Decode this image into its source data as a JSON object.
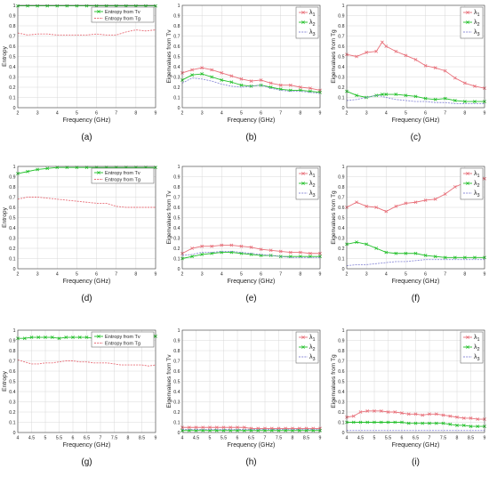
{
  "colors": {
    "red": "#e8707a",
    "green": "#22c02a",
    "blue": "#8c8cd8",
    "axis": "#404040",
    "grid": "#d8d8d8"
  },
  "chart_data": [
    {
      "id": "a",
      "panel_label": "(a)",
      "type": "line",
      "xlabel": "Frequency (GHz)",
      "ylabel": "Entropy",
      "xlim": [
        2,
        9
      ],
      "ylim": [
        0,
        1
      ],
      "xticks": [
        "2",
        "3",
        "4",
        "5",
        "6",
        "7",
        "8",
        "9"
      ],
      "yticks": [
        "0",
        "0.1",
        "0.2",
        "0.3",
        "0.4",
        "0.5",
        "0.6",
        "0.7",
        "0.8",
        "0.9",
        "1"
      ],
      "legend": "top-right",
      "x": [
        2,
        2.5,
        3,
        3.5,
        4,
        4.5,
        5,
        5.5,
        6,
        6.5,
        7,
        7.5,
        8,
        8.5,
        9
      ],
      "series": [
        {
          "name": "Entropy from Tv",
          "color": "green",
          "marker": "x",
          "values": [
            0.995,
            0.995,
            0.995,
            0.995,
            0.995,
            0.995,
            0.995,
            0.995,
            0.995,
            0.995,
            0.995,
            0.995,
            0.995,
            0.995,
            0.995
          ]
        },
        {
          "name": "Entropy from Tg",
          "color": "red",
          "marker": "",
          "values": [
            0.73,
            0.71,
            0.72,
            0.72,
            0.71,
            0.71,
            0.71,
            0.71,
            0.72,
            0.71,
            0.71,
            0.74,
            0.76,
            0.75,
            0.76
          ]
        }
      ]
    },
    {
      "id": "b",
      "panel_label": "(b)",
      "type": "line",
      "xlabel": "Frequency (GHz)",
      "ylabel": "Eigenvalues from Tv",
      "xlim": [
        2,
        9
      ],
      "ylim": [
        0,
        1
      ],
      "xticks": [
        "2",
        "3",
        "4",
        "5",
        "6",
        "7",
        "8",
        "9"
      ],
      "yticks": [
        "0",
        "0.1",
        "0.2",
        "0.3",
        "0.4",
        "0.5",
        "0.6",
        "0.7",
        "0.8",
        "0.9",
        "1"
      ],
      "legend": "top-right",
      "x": [
        2,
        2.5,
        3,
        3.5,
        4,
        4.5,
        5,
        5.5,
        6,
        6.5,
        7,
        7.5,
        8,
        8.5,
        9
      ],
      "series": [
        {
          "name": "λ1",
          "color": "red",
          "marker": "x",
          "values": [
            0.34,
            0.37,
            0.39,
            0.37,
            0.34,
            0.31,
            0.28,
            0.26,
            0.27,
            0.24,
            0.22,
            0.22,
            0.2,
            0.19,
            0.17
          ]
        },
        {
          "name": "λ2",
          "color": "green",
          "marker": "x",
          "values": [
            0.27,
            0.32,
            0.33,
            0.3,
            0.27,
            0.25,
            0.22,
            0.21,
            0.22,
            0.2,
            0.18,
            0.17,
            0.17,
            0.16,
            0.15
          ]
        },
        {
          "name": "λ3",
          "color": "blue",
          "marker": "",
          "values": [
            0.24,
            0.29,
            0.28,
            0.26,
            0.23,
            0.21,
            0.2,
            0.21,
            0.22,
            0.19,
            0.17,
            0.16,
            0.16,
            0.15,
            0.14
          ]
        }
      ]
    },
    {
      "id": "c",
      "panel_label": "(c)",
      "type": "line",
      "xlabel": "Frequency (GHz)",
      "ylabel": "Eigenvalues from Tg",
      "xlim": [
        2,
        9
      ],
      "ylim": [
        0,
        1
      ],
      "xticks": [
        "2",
        "3",
        "4",
        "5",
        "6",
        "7",
        "8",
        "9"
      ],
      "yticks": [
        "0",
        "0.1",
        "0.2",
        "0.3",
        "0.4",
        "0.5",
        "0.6",
        "0.7",
        "0.8",
        "0.9",
        "1"
      ],
      "legend": "top-right",
      "x": [
        2,
        2.5,
        3,
        3.5,
        3.8,
        4,
        4.5,
        5,
        5.5,
        6,
        6.5,
        7,
        7.5,
        8,
        8.5,
        9
      ],
      "series": [
        {
          "name": "λ1",
          "color": "red",
          "marker": "x",
          "values": [
            0.52,
            0.5,
            0.54,
            0.55,
            0.64,
            0.6,
            0.55,
            0.51,
            0.47,
            0.41,
            0.39,
            0.36,
            0.29,
            0.24,
            0.21,
            0.19
          ]
        },
        {
          "name": "λ2",
          "color": "green",
          "marker": "x",
          "values": [
            0.16,
            0.12,
            0.1,
            0.12,
            0.13,
            0.13,
            0.13,
            0.12,
            0.11,
            0.09,
            0.08,
            0.09,
            0.07,
            0.06,
            0.06,
            0.06
          ]
        },
        {
          "name": "λ3",
          "color": "blue",
          "marker": "",
          "values": [
            0.07,
            0.08,
            0.1,
            0.12,
            0.11,
            0.1,
            0.08,
            0.07,
            0.06,
            0.06,
            0.05,
            0.05,
            0.04,
            0.04,
            0.04,
            0.04
          ]
        }
      ]
    },
    {
      "id": "d",
      "panel_label": "(d)",
      "type": "line",
      "xlabel": "Frequency (GHz)",
      "ylabel": "Entropy",
      "xlim": [
        2,
        9
      ],
      "ylim": [
        0,
        1
      ],
      "xticks": [
        "2",
        "3",
        "4",
        "5",
        "6",
        "7",
        "8",
        "9"
      ],
      "yticks": [
        "0",
        "0.1",
        "0.2",
        "0.3",
        "0.4",
        "0.5",
        "0.6",
        "0.7",
        "0.8",
        "0.9",
        "1"
      ],
      "legend": "top-right",
      "x": [
        2,
        2.5,
        3,
        3.5,
        4,
        4.5,
        5,
        5.5,
        6,
        6.5,
        7,
        7.5,
        8,
        8.5,
        9
      ],
      "series": [
        {
          "name": "Entropy from Tv",
          "color": "green",
          "marker": "x",
          "values": [
            0.93,
            0.95,
            0.97,
            0.98,
            0.99,
            0.99,
            0.99,
            0.99,
            0.99,
            0.99,
            0.99,
            0.99,
            0.99,
            0.99,
            0.99
          ]
        },
        {
          "name": "Entropy from Tg",
          "color": "red",
          "marker": "",
          "values": [
            0.68,
            0.7,
            0.7,
            0.69,
            0.68,
            0.67,
            0.66,
            0.65,
            0.64,
            0.64,
            0.61,
            0.6,
            0.6,
            0.6,
            0.6
          ]
        }
      ]
    },
    {
      "id": "e",
      "panel_label": "(e)",
      "type": "line",
      "xlabel": "Frequency (GHz)",
      "ylabel": "Eigenvalues from Tv",
      "xlim": [
        2,
        9
      ],
      "ylim": [
        0,
        1
      ],
      "xticks": [
        "2",
        "3",
        "4",
        "5",
        "6",
        "7",
        "8",
        "9"
      ],
      "yticks": [
        "0",
        "0.1",
        "0.2",
        "0.3",
        "0.4",
        "0.5",
        "0.6",
        "0.7",
        "0.8",
        "0.9",
        "1"
      ],
      "legend": "top-right",
      "x": [
        2,
        2.5,
        3,
        3.5,
        4,
        4.5,
        5,
        5.5,
        6,
        6.5,
        7,
        7.5,
        8,
        8.5,
        9
      ],
      "series": [
        {
          "name": "λ1",
          "color": "red",
          "marker": "x",
          "values": [
            0.15,
            0.2,
            0.22,
            0.22,
            0.23,
            0.23,
            0.22,
            0.21,
            0.19,
            0.18,
            0.17,
            0.16,
            0.16,
            0.15,
            0.15
          ]
        },
        {
          "name": "λ2",
          "color": "green",
          "marker": "x",
          "values": [
            0.1,
            0.12,
            0.14,
            0.15,
            0.16,
            0.16,
            0.15,
            0.14,
            0.13,
            0.13,
            0.12,
            0.12,
            0.12,
            0.12,
            0.12
          ]
        },
        {
          "name": "λ3",
          "color": "blue",
          "marker": "",
          "values": [
            0.13,
            0.14,
            0.16,
            0.16,
            0.17,
            0.17,
            0.16,
            0.15,
            0.14,
            0.13,
            0.12,
            0.11,
            0.11,
            0.11,
            0.11
          ]
        }
      ]
    },
    {
      "id": "f",
      "panel_label": "(f)",
      "type": "line",
      "xlabel": "Frequency (GHz)",
      "ylabel": "Eigenvalues from Tg",
      "xlim": [
        2,
        9
      ],
      "ylim": [
        0,
        1
      ],
      "xticks": [
        "2",
        "3",
        "4",
        "5",
        "6",
        "7",
        "8",
        "9"
      ],
      "yticks": [
        "0",
        "0.1",
        "0.2",
        "0.3",
        "0.4",
        "0.5",
        "0.6",
        "0.7",
        "0.8",
        "0.9",
        "1"
      ],
      "legend": "top-right",
      "x": [
        2,
        2.5,
        3,
        3.5,
        4,
        4.5,
        5,
        5.5,
        6,
        6.5,
        7,
        7.5,
        8,
        8.5,
        9
      ],
      "series": [
        {
          "name": "λ1",
          "color": "red",
          "marker": "x",
          "values": [
            0.6,
            0.65,
            0.61,
            0.6,
            0.56,
            0.61,
            0.64,
            0.65,
            0.67,
            0.68,
            0.73,
            0.8,
            0.84,
            0.9,
            0.88
          ]
        },
        {
          "name": "λ2",
          "color": "green",
          "marker": "x",
          "values": [
            0.24,
            0.26,
            0.24,
            0.2,
            0.16,
            0.15,
            0.15,
            0.15,
            0.13,
            0.12,
            0.11,
            0.11,
            0.11,
            0.11,
            0.11
          ]
        },
        {
          "name": "λ3",
          "color": "blue",
          "marker": "",
          "values": [
            0.03,
            0.04,
            0.04,
            0.05,
            0.06,
            0.07,
            0.07,
            0.08,
            0.09,
            0.09,
            0.09,
            0.09,
            0.09,
            0.09,
            0.09
          ]
        }
      ]
    },
    {
      "id": "g",
      "panel_label": "(g)",
      "type": "line",
      "xlabel": "Frequency (GHz)",
      "ylabel": "Entropy",
      "xlim": [
        4,
        9
      ],
      "ylim": [
        0,
        1
      ],
      "xticks": [
        "4",
        "4.5",
        "5",
        "5.5",
        "6",
        "6.5",
        "7",
        "7.5",
        "8",
        "8.5",
        "9"
      ],
      "yticks": [
        "0",
        "0.1",
        "0.2",
        "0.3",
        "0.4",
        "0.5",
        "0.6",
        "0.7",
        "0.8",
        "0.9",
        "1"
      ],
      "legend": "top-right",
      "x": [
        4,
        4.25,
        4.5,
        4.75,
        5,
        5.25,
        5.5,
        5.75,
        6,
        6.25,
        6.5,
        6.75,
        7,
        7.25,
        7.5,
        7.75,
        8,
        8.25,
        8.5,
        8.75,
        9
      ],
      "series": [
        {
          "name": "Entropy from Tv",
          "color": "green",
          "marker": "x",
          "values": [
            0.92,
            0.92,
            0.93,
            0.93,
            0.93,
            0.93,
            0.92,
            0.93,
            0.93,
            0.93,
            0.93,
            0.92,
            0.92,
            0.92,
            0.92,
            0.93,
            0.93,
            0.93,
            0.93,
            0.94,
            0.94
          ]
        },
        {
          "name": "Entropy from Tg",
          "color": "red",
          "marker": "",
          "values": [
            0.71,
            0.69,
            0.67,
            0.67,
            0.68,
            0.68,
            0.69,
            0.7,
            0.7,
            0.69,
            0.69,
            0.68,
            0.68,
            0.68,
            0.67,
            0.66,
            0.66,
            0.66,
            0.66,
            0.65,
            0.66
          ]
        }
      ]
    },
    {
      "id": "h",
      "panel_label": "(h)",
      "type": "line",
      "xlabel": "Frequency (GHz)",
      "ylabel": "Eigenvalues from Tv",
      "xlim": [
        4,
        9
      ],
      "ylim": [
        0,
        1
      ],
      "xticks": [
        "4",
        "4.5",
        "5",
        "5.5",
        "6",
        "6.5",
        "7",
        "7.5",
        "8",
        "8.5",
        "9"
      ],
      "yticks": [
        "0",
        "0.1",
        "0.2",
        "0.3",
        "0.4",
        "0.5",
        "0.6",
        "0.7",
        "0.8",
        "0.9",
        "1"
      ],
      "legend": "top-right",
      "x": [
        4,
        4.25,
        4.5,
        4.75,
        5,
        5.25,
        5.5,
        5.75,
        6,
        6.25,
        6.5,
        6.75,
        7,
        7.25,
        7.5,
        7.75,
        8,
        8.25,
        8.5,
        8.75,
        9
      ],
      "series": [
        {
          "name": "λ1",
          "color": "red",
          "marker": "x",
          "values": [
            0.05,
            0.05,
            0.05,
            0.05,
            0.05,
            0.05,
            0.05,
            0.05,
            0.05,
            0.05,
            0.04,
            0.04,
            0.04,
            0.04,
            0.04,
            0.04,
            0.04,
            0.04,
            0.04,
            0.04,
            0.04
          ]
        },
        {
          "name": "λ2",
          "color": "green",
          "marker": "x",
          "values": [
            0.02,
            0.02,
            0.02,
            0.02,
            0.02,
            0.02,
            0.02,
            0.02,
            0.02,
            0.02,
            0.02,
            0.02,
            0.02,
            0.02,
            0.02,
            0.02,
            0.02,
            0.02,
            0.02,
            0.02,
            0.02
          ]
        },
        {
          "name": "λ3",
          "color": "blue",
          "marker": "",
          "values": [
            0.03,
            0.03,
            0.03,
            0.03,
            0.03,
            0.03,
            0.03,
            0.03,
            0.03,
            0.03,
            0.03,
            0.03,
            0.03,
            0.03,
            0.03,
            0.03,
            0.03,
            0.03,
            0.03,
            0.03,
            0.03
          ]
        }
      ]
    },
    {
      "id": "i",
      "panel_label": "(i)",
      "type": "line",
      "xlabel": "Frequency (GHz)",
      "ylabel": "Eigenvalues from Tg",
      "xlim": [
        4,
        9
      ],
      "ylim": [
        0,
        1
      ],
      "xticks": [
        "4",
        "4.5",
        "5",
        "5.5",
        "6",
        "6.5",
        "7",
        "7.5",
        "8",
        "8.5",
        "9"
      ],
      "yticks": [
        "0",
        "0.1",
        "0.2",
        "0.3",
        "0.4",
        "0.5",
        "0.6",
        "0.7",
        "0.8",
        "0.9",
        "1"
      ],
      "legend": "top-right",
      "x": [
        4,
        4.25,
        4.5,
        4.75,
        5,
        5.25,
        5.5,
        5.75,
        6,
        6.25,
        6.5,
        6.75,
        7,
        7.25,
        7.5,
        7.75,
        8,
        8.25,
        8.5,
        8.75,
        9
      ],
      "series": [
        {
          "name": "λ1",
          "color": "red",
          "marker": "x",
          "values": [
            0.15,
            0.16,
            0.2,
            0.21,
            0.21,
            0.21,
            0.2,
            0.2,
            0.19,
            0.18,
            0.18,
            0.17,
            0.18,
            0.18,
            0.17,
            0.16,
            0.15,
            0.14,
            0.14,
            0.13,
            0.13
          ]
        },
        {
          "name": "λ2",
          "color": "green",
          "marker": "x",
          "values": [
            0.1,
            0.1,
            0.1,
            0.1,
            0.1,
            0.1,
            0.1,
            0.1,
            0.1,
            0.09,
            0.09,
            0.09,
            0.09,
            0.09,
            0.09,
            0.08,
            0.07,
            0.07,
            0.06,
            0.06,
            0.06
          ]
        },
        {
          "name": "λ3",
          "color": "blue",
          "marker": "",
          "values": [
            0.02,
            0.02,
            0.02,
            0.02,
            0.02,
            0.02,
            0.02,
            0.02,
            0.02,
            0.02,
            0.02,
            0.02,
            0.02,
            0.02,
            0.02,
            0.02,
            0.02,
            0.02,
            0.02,
            0.02,
            0.02
          ]
        }
      ]
    }
  ]
}
